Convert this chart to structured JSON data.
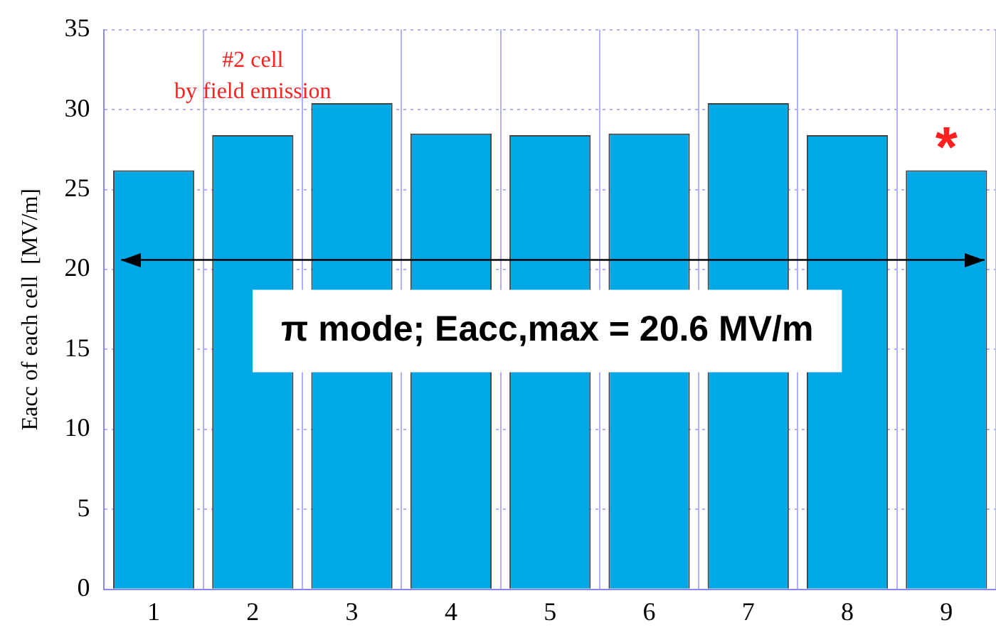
{
  "chart_data": {
    "type": "bar",
    "ylabel": "Eacc of each cell  [MV/m]",
    "categories": [
      "1",
      "2",
      "3",
      "4",
      "5",
      "6",
      "7",
      "8",
      "9"
    ],
    "values": [
      26.2,
      28.4,
      30.4,
      28.5,
      28.4,
      28.5,
      30.4,
      28.4,
      26.2
    ],
    "color": "#00a8e6",
    "ylim": [
      0,
      35
    ],
    "yticks": [
      0,
      5,
      10,
      15,
      20,
      25,
      30,
      35
    ],
    "grid": true,
    "ref_lines": [
      {
        "axis": "y",
        "value": 20.6,
        "label": "π mode; Eacc,max = 20.6 MV/m",
        "color": "#000000"
      }
    ],
    "annotations": [
      "#2 cell\nby field emission",
      "*"
    ]
  }
}
